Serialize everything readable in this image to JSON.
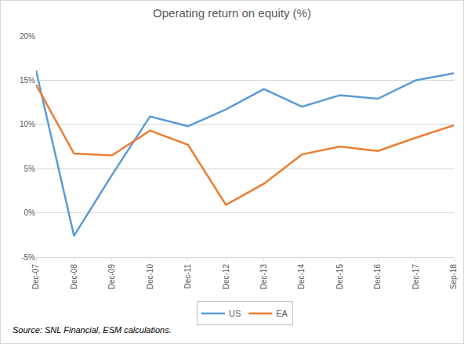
{
  "chart_data": {
    "type": "line",
    "title": "Operating return on equity (%)",
    "categories": [
      "Dec-07",
      "Dec-08",
      "Dec-09",
      "Dec-10",
      "Dec-11",
      "Dec-12",
      "Dec-13",
      "Dec-14",
      "Dec-15",
      "Dec-16",
      "Dec-17",
      "Sep-18"
    ],
    "series": [
      {
        "name": "US",
        "color": "#5b9bd5",
        "values": [
          16.1,
          -2.6,
          4.3,
          10.9,
          9.8,
          11.7,
          14.0,
          12.0,
          13.3,
          12.9,
          15.0,
          15.8
        ]
      },
      {
        "name": "EA",
        "color": "#ed7d31",
        "values": [
          14.5,
          6.7,
          6.5,
          9.3,
          7.7,
          0.9,
          3.3,
          6.6,
          7.5,
          7.0,
          8.5,
          9.9
        ]
      }
    ],
    "ylim": [
      -5,
      20
    ],
    "yticks": [
      {
        "value": -5,
        "label": "-5%"
      },
      {
        "value": 0,
        "label": "0%"
      },
      {
        "value": 5,
        "label": "5%"
      },
      {
        "value": 10,
        "label": "10%"
      },
      {
        "value": 15,
        "label": "15%"
      },
      {
        "value": 20,
        "label": "20%"
      }
    ],
    "grid": true,
    "legend": "bottom",
    "annotations": [
      "Source: SNL Financial, ESM calculations."
    ]
  }
}
